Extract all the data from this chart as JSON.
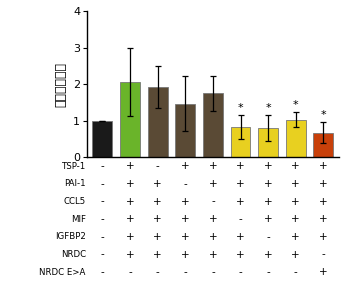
{
  "bar_values": [
    1.0,
    2.07,
    1.92,
    1.47,
    1.75,
    0.83,
    0.8,
    1.03,
    0.68
  ],
  "bar_errors": [
    0.0,
    0.93,
    0.58,
    0.75,
    0.47,
    0.32,
    0.35,
    0.2,
    0.28
  ],
  "bar_colors": [
    "#1a1a1a",
    "#6ab42a",
    "#5a4a35",
    "#5a4a35",
    "#5a4a35",
    "#e8d020",
    "#e8d020",
    "#e8d020",
    "#c8400a"
  ],
  "significance": [
    false,
    false,
    false,
    false,
    false,
    true,
    true,
    true,
    true
  ],
  "ylabel": "血小板生産性",
  "ylim": [
    0,
    4
  ],
  "yticks": [
    0,
    1,
    2,
    3,
    4
  ],
  "table_rows": [
    "TSP-1",
    "PAI-1",
    "CCL5",
    "MIF",
    "IGFBP2",
    "NRDC",
    "NRDC E>A"
  ],
  "table_data": [
    [
      "-",
      "+",
      "-",
      "+",
      "+",
      "+",
      "+",
      "+",
      "+"
    ],
    [
      "-",
      "+",
      "+",
      "-",
      "+",
      "+",
      "+",
      "+",
      "+"
    ],
    [
      "-",
      "+",
      "+",
      "+",
      "-",
      "+",
      "+",
      "+",
      "+"
    ],
    [
      "-",
      "+",
      "+",
      "+",
      "+",
      "-",
      "+",
      "+",
      "+"
    ],
    [
      "-",
      "+",
      "+",
      "+",
      "+",
      "+",
      "-",
      "+",
      "+"
    ],
    [
      "-",
      "+",
      "+",
      "+",
      "+",
      "+",
      "+",
      "+",
      "-"
    ],
    [
      "-",
      "-",
      "-",
      "-",
      "-",
      "-",
      "-",
      "-",
      "+"
    ]
  ],
  "significance_marker": "*"
}
